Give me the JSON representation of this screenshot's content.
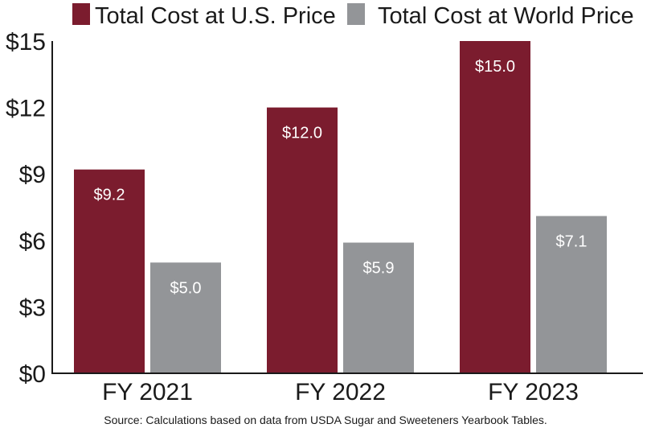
{
  "chart_data": {
    "type": "bar",
    "categories": [
      "FY 2021",
      "FY 2022",
      "FY 2023"
    ],
    "series": [
      {
        "name": "Total Cost at U.S. Price",
        "values": [
          9.2,
          12.0,
          15.0
        ],
        "labels": [
          "$9.2",
          "$12.0",
          "$15.0"
        ],
        "color": "#7b1c2e"
      },
      {
        "name": "Total Cost at World Price",
        "values": [
          5.0,
          5.9,
          7.1
        ],
        "labels": [
          "$5.0",
          "$5.9",
          "$7.1"
        ],
        "color": "#939598"
      }
    ],
    "yticks": [
      0,
      3,
      6,
      9,
      12,
      15
    ],
    "ytick_labels": [
      "$0",
      "$3",
      "$6",
      "$9",
      "$12",
      "$15"
    ],
    "ylim": [
      0,
      15
    ],
    "grid": false,
    "legend_position": "top",
    "source": "Source: Calculations based on data from USDA Sugar and Sweeteners Yearbook Tables."
  }
}
